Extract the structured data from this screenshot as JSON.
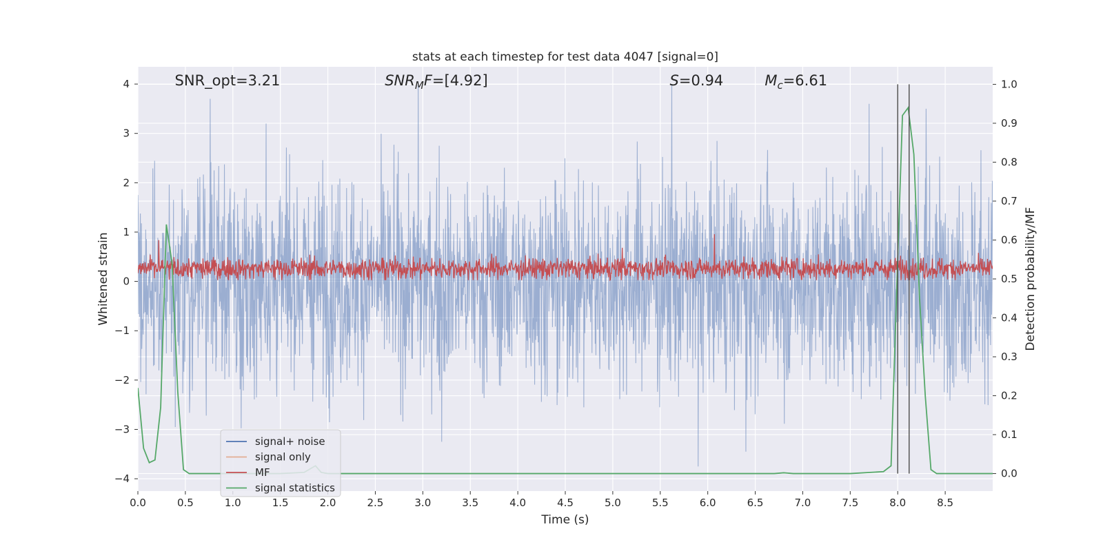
{
  "chart_data": {
    "type": "line",
    "title": "stats at each timestep for test data 4047 [signal=0]",
    "xlabel": "Time (s)",
    "ylabel": "Whitened strain",
    "y2label": "Detection probability/MF",
    "xlim": [
      0.0,
      9.0
    ],
    "ylim": [
      -4.25,
      4.35
    ],
    "y2lim": [
      -0.045,
      1.045
    ],
    "x_ticks": [
      "0.0",
      "0.5",
      "1.0",
      "1.5",
      "2.0",
      "2.5",
      "3.0",
      "3.5",
      "4.0",
      "4.5",
      "5.0",
      "5.5",
      "6.0",
      "6.5",
      "7.0",
      "7.5",
      "8.0",
      "8.5"
    ],
    "y_ticks": [
      "4",
      "3",
      "2",
      "1",
      "0",
      "−1",
      "−2",
      "−3",
      "−4"
    ],
    "y2_ticks": [
      "1.0",
      "0.9",
      "0.8",
      "0.7",
      "0.6",
      "0.5",
      "0.4",
      "0.3",
      "0.2",
      "0.1",
      "0.0"
    ],
    "annotations": [
      {
        "text": "SNR_opt=3.21",
        "x": 0.2
      },
      {
        "text": "SNR_MF=[4.92]",
        "x": 2.6
      },
      {
        "text": "S=0.94",
        "x": 5.6
      },
      {
        "text": "M_c=6.61",
        "x": 6.6
      }
    ],
    "grid": true,
    "legend_position": "lower-left",
    "vlines_x": [
      8.0,
      8.12
    ],
    "series": [
      {
        "name": "signal+ noise",
        "color": "#4c72b0",
        "note_style": "dense noise, approx amplitude",
        "envelope_y": [
          -2.5,
          2.5
        ],
        "peak_values": [
          {
            "x": 0.76,
            "y": 3.7
          },
          {
            "x": 1.35,
            "y": 3.2
          },
          {
            "x": 2.95,
            "y": 4.0
          },
          {
            "x": 3.2,
            "y": -3.25
          },
          {
            "x": 5.62,
            "y": 4.0
          },
          {
            "x": 5.9,
            "y": -3.75
          },
          {
            "x": 6.4,
            "y": -3.45
          },
          {
            "x": 8.3,
            "y": 3.5
          },
          {
            "x": 7.7,
            "y": 3.6
          }
        ]
      },
      {
        "name": "signal only",
        "color": "#dd8452",
        "values": []
      },
      {
        "name": "MF",
        "color": "#c44e52",
        "axis": "right",
        "range": [
          0.5,
          0.56
        ],
        "peak_values": [
          {
            "x": 0.22,
            "y": 0.6
          },
          {
            "x": 6.07,
            "y": 0.615
          },
          {
            "x": 5.1,
            "y": 0.58
          }
        ]
      },
      {
        "name": "signal statistics",
        "color": "#55a868",
        "axis": "right",
        "x": [
          0.0,
          0.06,
          0.12,
          0.18,
          0.24,
          0.3,
          0.36,
          0.42,
          0.48,
          0.54,
          0.6,
          1.0,
          1.5,
          1.75,
          1.87,
          1.93,
          2.0,
          3.0,
          4.0,
          5.0,
          6.0,
          6.7,
          6.8,
          6.9,
          7.5,
          7.85,
          7.93,
          7.99,
          8.05,
          8.11,
          8.17,
          8.23,
          8.29,
          8.35,
          8.41,
          8.5,
          9.0
        ],
        "y": [
          0.22,
          0.065,
          0.028,
          0.035,
          0.17,
          0.64,
          0.54,
          0.21,
          0.01,
          0.0,
          0.0,
          0.0,
          0.0,
          0.003,
          0.02,
          0.003,
          0.0,
          0.0,
          0.0,
          0.0,
          0.0,
          0.0,
          0.002,
          0.0,
          0.0,
          0.005,
          0.02,
          0.48,
          0.92,
          0.94,
          0.82,
          0.45,
          0.2,
          0.01,
          0.0,
          0.0,
          0.0
        ]
      }
    ]
  }
}
